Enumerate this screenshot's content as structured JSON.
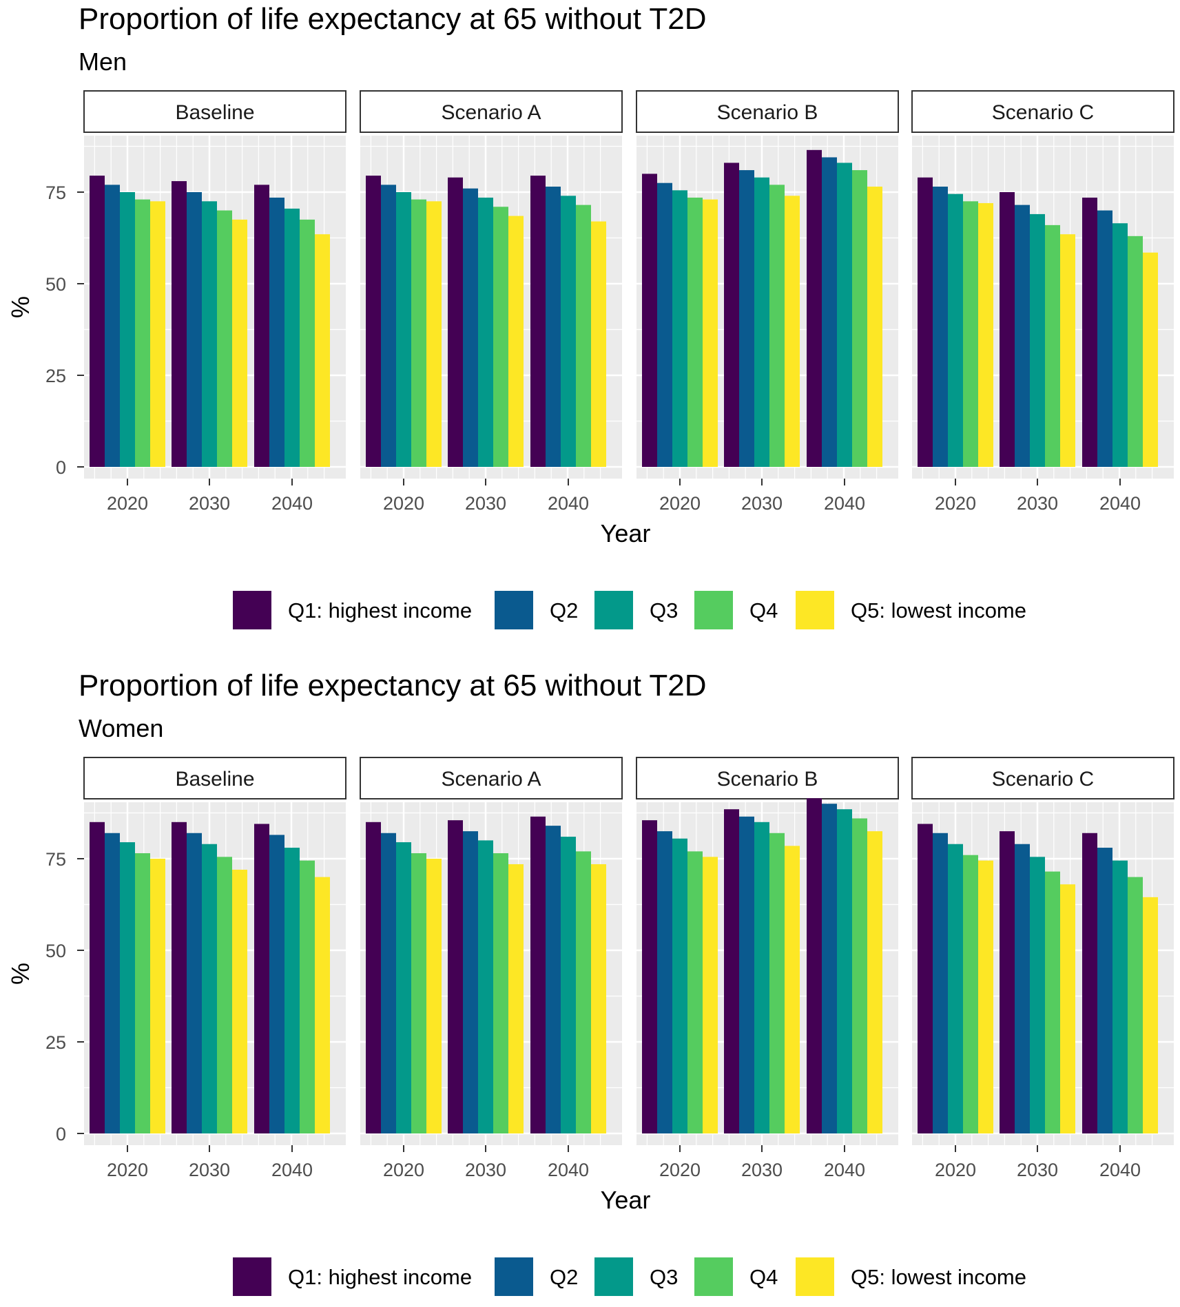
{
  "colors": {
    "Q1": "#440154",
    "Q2": "#0a5a8f",
    "Q3": "#03998a",
    "Q4": "#55cc5f",
    "Q5": "#fde725",
    "panel_bg": "#ebebeb",
    "grid": "#ffffff",
    "strip_bg": "#ffffff",
    "strip_border": "#333333"
  },
  "legend": [
    {
      "key": "Q1",
      "label": "Q1: highest income"
    },
    {
      "key": "Q2",
      "label": "Q2"
    },
    {
      "key": "Q3",
      "label": "Q3"
    },
    {
      "key": "Q4",
      "label": "Q4"
    },
    {
      "key": "Q5",
      "label": "Q5: lowest income"
    }
  ],
  "chart_data": [
    {
      "type": "bar",
      "title": "Proportion of life expectancy at 65 without T2D",
      "subtitle": "Men",
      "xlabel": "Year",
      "ylabel": "%",
      "ylim": [
        0,
        90
      ],
      "yticks": [
        0,
        25,
        50,
        75
      ],
      "categories": [
        "2020",
        "2030",
        "2040"
      ],
      "series_names": [
        "Q1: highest income",
        "Q2",
        "Q3",
        "Q4",
        "Q5: lowest income"
      ],
      "panels": [
        {
          "name": "Baseline",
          "values": [
            [
              79.5,
              77,
              75,
              73,
              72.5
            ],
            [
              78,
              75,
              72.5,
              70,
              67.5
            ],
            [
              77,
              73.5,
              70.5,
              67.5,
              63.5
            ]
          ]
        },
        {
          "name": "Scenario A",
          "values": [
            [
              79.5,
              77,
              75,
              73,
              72.5
            ],
            [
              79,
              76,
              73.5,
              71,
              68.5
            ],
            [
              79.5,
              76.5,
              74,
              71.5,
              67
            ]
          ]
        },
        {
          "name": "Scenario B",
          "values": [
            [
              80,
              77.5,
              75.5,
              73.5,
              73
            ],
            [
              83,
              81,
              79,
              77,
              74
            ],
            [
              86.5,
              84.5,
              83,
              81,
              76.5
            ]
          ]
        },
        {
          "name": "Scenario C",
          "values": [
            [
              79,
              76.5,
              74.5,
              72.5,
              72
            ],
            [
              75,
              71.5,
              69,
              66,
              63.5
            ],
            [
              73.5,
              70,
              66.5,
              63,
              58.5
            ]
          ]
        }
      ]
    },
    {
      "type": "bar",
      "title": "Proportion of life expectancy at 65 without T2D",
      "subtitle": "Women",
      "xlabel": "Year",
      "ylabel": "%",
      "ylim": [
        0,
        90
      ],
      "yticks": [
        0,
        25,
        50,
        75
      ],
      "categories": [
        "2020",
        "2030",
        "2040"
      ],
      "series_names": [
        "Q1: highest income",
        "Q2",
        "Q3",
        "Q4",
        "Q5: lowest income"
      ],
      "panels": [
        {
          "name": "Baseline",
          "values": [
            [
              85,
              82,
              79.5,
              76.5,
              75
            ],
            [
              85,
              82,
              79,
              75.5,
              72
            ],
            [
              84.5,
              81.5,
              78,
              74.5,
              70
            ]
          ]
        },
        {
          "name": "Scenario A",
          "values": [
            [
              85,
              82,
              79.5,
              76.5,
              75
            ],
            [
              85.5,
              82.5,
              80,
              76.5,
              73.5
            ],
            [
              86.5,
              84,
              81,
              77,
              73.5
            ]
          ]
        },
        {
          "name": "Scenario B",
          "values": [
            [
              85.5,
              82.5,
              80.5,
              77,
              75.5
            ],
            [
              88.5,
              86.5,
              85,
              82,
              78.5
            ],
            [
              91.5,
              90,
              88.5,
              86,
              82.5
            ]
          ]
        },
        {
          "name": "Scenario C",
          "values": [
            [
              84.5,
              82,
              79,
              76,
              74.5
            ],
            [
              82.5,
              79,
              75.5,
              71.5,
              68
            ],
            [
              82,
              78,
              74.5,
              70,
              64.5
            ]
          ]
        }
      ]
    }
  ]
}
